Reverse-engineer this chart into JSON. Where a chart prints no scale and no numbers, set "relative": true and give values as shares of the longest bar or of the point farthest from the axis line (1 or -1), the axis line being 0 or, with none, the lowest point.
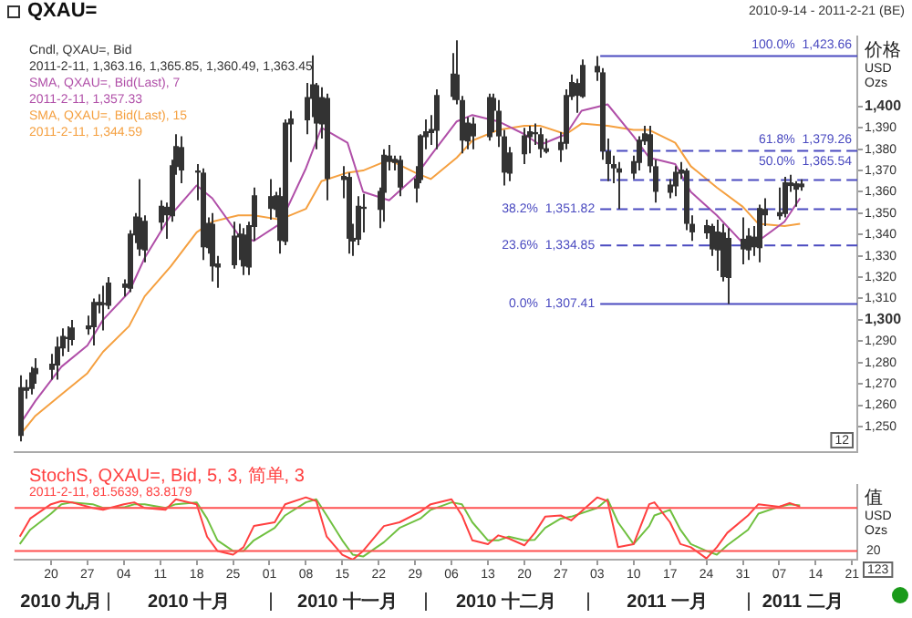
{
  "chart_data": [
    {
      "type": "candlestick",
      "title": "QXAU=",
      "subtitle": "2010-9-14 - 2011-2-21 (BE)",
      "ylabel": "价格 USD Ozs",
      "legend": "top left",
      "tick_labels": "y",
      "xlim": [
        "2010-09-13",
        "2011-02-22"
      ],
      "ylim": [
        1238,
        1433
      ],
      "yticks": [
        {
          "value": 1250,
          "label": "1,250"
        },
        {
          "value": 1260,
          "label": "1,260"
        },
        {
          "value": 1270,
          "label": "1,270"
        },
        {
          "value": 1280,
          "label": "1,280"
        },
        {
          "value": 1290,
          "label": "1,290"
        },
        {
          "value": 1300,
          "label": "1,300"
        },
        {
          "value": 1310,
          "label": "1,310"
        },
        {
          "value": 1320,
          "label": "1,320"
        },
        {
          "value": 1330,
          "label": "1,330"
        },
        {
          "value": 1340,
          "label": "1,340"
        },
        {
          "value": 1350,
          "label": "1,350"
        },
        {
          "value": 1360,
          "label": "1,360"
        },
        {
          "value": 1370,
          "label": "1,370"
        },
        {
          "value": 1380,
          "label": "1,380"
        },
        {
          "value": 1390,
          "label": "1,390"
        },
        {
          "value": 1400,
          "label": "1,400"
        }
      ],
      "series": [
        {
          "name": "Cndl, QXAU=, Bid",
          "color": "#333333",
          "x": [
            "2010-09-14",
            "2010-09-15",
            "2010-09-16",
            "2010-09-17",
            "2010-09-20",
            "2010-09-21",
            "2010-09-22",
            "2010-09-23",
            "2010-09-24",
            "2010-09-27",
            "2010-09-28",
            "2010-09-29",
            "2010-09-30",
            "2010-10-01",
            "2010-10-04",
            "2010-10-05",
            "2010-10-06",
            "2010-10-07",
            "2010-10-08",
            "2010-10-11",
            "2010-10-12",
            "2010-10-13",
            "2010-10-14",
            "2010-10-15",
            "2010-10-18",
            "2010-10-19",
            "2010-10-20",
            "2010-10-21",
            "2010-10-22",
            "2010-10-25",
            "2010-10-26",
            "2010-10-27",
            "2010-10-28",
            "2010-10-29",
            "2010-11-01",
            "2010-11-02",
            "2010-11-03",
            "2010-11-04",
            "2010-11-05",
            "2010-11-08",
            "2010-11-09",
            "2010-11-10",
            "2010-11-11",
            "2010-11-12",
            "2010-11-15",
            "2010-11-16",
            "2010-11-17",
            "2010-11-18",
            "2010-11-19",
            "2010-11-22",
            "2010-11-23",
            "2010-11-24",
            "2010-11-25",
            "2010-11-26",
            "2010-11-29",
            "2010-11-30",
            "2010-12-01",
            "2010-12-02",
            "2010-12-03",
            "2010-12-06",
            "2010-12-07",
            "2010-12-08",
            "2010-12-09",
            "2010-12-10",
            "2010-12-13",
            "2010-12-14",
            "2010-12-15",
            "2010-12-16",
            "2010-12-17",
            "2010-12-20",
            "2010-12-21",
            "2010-12-22",
            "2010-12-23",
            "2010-12-24",
            "2010-12-27",
            "2010-12-28",
            "2010-12-29",
            "2010-12-30",
            "2010-12-31",
            "2011-01-03",
            "2011-01-04",
            "2011-01-05",
            "2011-01-06",
            "2011-01-07",
            "2011-01-10",
            "2011-01-11",
            "2011-01-12",
            "2011-01-13",
            "2011-01-14",
            "2011-01-17",
            "2011-01-18",
            "2011-01-19",
            "2011-01-20",
            "2011-01-21",
            "2011-01-24",
            "2011-01-25",
            "2011-01-26",
            "2011-01-27",
            "2011-01-28",
            "2011-01-31",
            "2011-02-01",
            "2011-02-02",
            "2011-02-03",
            "2011-02-04",
            "2011-02-07",
            "2011-02-08",
            "2011-02-09",
            "2011-02-10",
            "2011-02-11"
          ],
          "ohlc": [
            [
              1246,
              1274,
              1243,
              1268
            ],
            [
              1268,
              1272,
              1263,
              1268
            ],
            [
              1268,
              1278,
              1265,
              1275
            ],
            [
              1275,
              1282,
              1270,
              1277
            ],
            [
              1277,
              1284,
              1272,
              1279
            ],
            [
              1279,
              1292,
              1272,
              1287
            ],
            [
              1287,
              1296,
              1283,
              1292
            ],
            [
              1292,
              1297,
              1285,
              1291
            ],
            [
              1291,
              1300,
              1288,
              1296
            ],
            [
              1296,
              1302,
              1293,
              1297
            ],
            [
              1297,
              1310,
              1288,
              1308
            ],
            [
              1308,
              1312,
              1303,
              1308
            ],
            [
              1308,
              1316,
              1295,
              1307
            ],
            [
              1307,
              1320,
              1305,
              1317
            ],
            [
              1317,
              1319,
              1311,
              1315
            ],
            [
              1315,
              1342,
              1313,
              1340
            ],
            [
              1340,
              1350,
              1336,
              1348
            ],
            [
              1348,
              1366,
              1330,
              1333
            ],
            [
              1333,
              1349,
              1327,
              1346
            ],
            [
              1346,
              1356,
              1342,
              1353
            ],
            [
              1353,
              1355,
              1338,
              1349
            ],
            [
              1349,
              1375,
              1346,
              1372
            ],
            [
              1372,
              1387,
              1368,
              1381
            ],
            [
              1381,
              1386,
              1364,
              1370
            ],
            [
              1370,
              1373,
              1356,
              1369
            ],
            [
              1369,
              1371,
              1328,
              1334
            ],
            [
              1334,
              1348,
              1331,
              1345
            ],
            [
              1345,
              1350,
              1318,
              1325
            ],
            [
              1325,
              1330,
              1315,
              1326
            ],
            [
              1326,
              1346,
              1324,
              1339
            ],
            [
              1339,
              1345,
              1328,
              1340
            ],
            [
              1340,
              1343,
              1321,
              1325
            ],
            [
              1325,
              1346,
              1321,
              1344
            ],
            [
              1344,
              1362,
              1337,
              1358
            ],
            [
              1358,
              1366,
              1347,
              1352
            ],
            [
              1352,
              1360,
              1348,
              1358
            ],
            [
              1358,
              1362,
              1331,
              1337
            ],
            [
              1337,
              1394,
              1335,
              1392
            ],
            [
              1392,
              1398,
              1374,
              1394
            ],
            [
              1394,
              1411,
              1387,
              1404
            ],
            [
              1404,
              1424,
              1395,
              1410
            ],
            [
              1410,
              1411,
              1380,
              1392
            ],
            [
              1392,
              1409,
              1385,
              1404
            ],
            [
              1404,
              1406,
              1356,
              1366
            ],
            [
              1366,
              1372,
              1357,
              1367
            ],
            [
              1367,
              1369,
              1331,
              1338
            ],
            [
              1338,
              1345,
              1330,
              1338
            ],
            [
              1338,
              1358,
              1335,
              1353
            ],
            [
              1353,
              1359,
              1341,
              1352
            ],
            [
              1352,
              1362,
              1343,
              1360
            ],
            [
              1360,
              1380,
              1346,
              1377
            ],
            [
              1377,
              1382,
              1370,
              1374
            ],
            [
              1374,
              1377,
              1370,
              1375
            ],
            [
              1375,
              1377,
              1358,
              1362
            ],
            [
              1362,
              1372,
              1355,
              1366
            ],
            [
              1366,
              1387,
              1364,
              1386
            ],
            [
              1386,
              1394,
              1380,
              1388
            ],
            [
              1388,
              1396,
              1382,
              1389
            ],
            [
              1389,
              1408,
              1380,
              1405
            ],
            [
              1405,
              1425,
              1403,
              1415
            ],
            [
              1415,
              1431,
              1401,
              1403
            ],
            [
              1403,
              1405,
              1378,
              1384
            ],
            [
              1384,
              1395,
              1380,
              1392
            ],
            [
              1392,
              1395,
              1380,
              1386
            ],
            [
              1386,
              1406,
              1384,
              1404
            ],
            [
              1404,
              1406,
              1388,
              1398
            ],
            [
              1398,
              1403,
              1381,
              1386
            ],
            [
              1386,
              1389,
              1363,
              1369
            ],
            [
              1369,
              1381,
              1365,
              1378
            ],
            [
              1378,
              1390,
              1373,
              1386
            ],
            [
              1386,
              1391,
              1378,
              1388
            ],
            [
              1388,
              1392,
              1382,
              1387
            ],
            [
              1387,
              1390,
              1376,
              1380
            ],
            [
              1380,
              1385,
              1378,
              1380
            ],
            [
              1380,
              1388,
              1374,
              1383
            ],
            [
              1383,
              1408,
              1380,
              1405
            ],
            [
              1405,
              1415,
              1403,
              1411
            ],
            [
              1411,
              1413,
              1397,
              1405
            ],
            [
              1405,
              1422,
              1404,
              1419
            ],
            [
              1419,
              1423.66,
              1412,
              1416
            ],
            [
              1416,
              1418,
              1375,
              1379
            ],
            [
              1379,
              1385,
              1365,
              1373
            ],
            [
              1373,
              1377,
              1364,
              1371
            ],
            [
              1371,
              1374,
              1352,
              1369
            ],
            [
              1369,
              1377,
              1366,
              1374
            ],
            [
              1374,
              1386,
              1370,
              1384
            ],
            [
              1384,
              1391,
              1382,
              1387
            ],
            [
              1387,
              1391,
              1369,
              1372
            ],
            [
              1372,
              1375,
              1355,
              1360
            ],
            [
              1360,
              1366,
              1357,
              1363
            ],
            [
              1363,
              1372,
              1358,
              1369
            ],
            [
              1369,
              1374,
              1366,
              1370
            ],
            [
              1370,
              1371,
              1342,
              1345
            ],
            [
              1345,
              1349,
              1337,
              1341
            ],
            [
              1341,
              1347,
              1338,
              1344
            ],
            [
              1344,
              1345,
              1330,
              1333
            ],
            [
              1333,
              1347,
              1323,
              1341
            ],
            [
              1341,
              1345,
              1318,
              1320
            ],
            [
              1320,
              1343,
              1307.41,
              1338
            ],
            [
              1338,
              1348,
              1326,
              1333
            ],
            [
              1333,
              1343,
              1328,
              1339
            ],
            [
              1339,
              1344,
              1330,
              1334
            ],
            [
              1334,
              1354,
              1327,
              1352
            ],
            [
              1352,
              1357,
              1344,
              1349
            ],
            [
              1349,
              1362,
              1347,
              1350
            ],
            [
              1350,
              1367,
              1348,
              1364
            ],
            [
              1364,
              1368,
              1360,
              1364
            ],
            [
              1364,
              1365,
              1353,
              1361
            ],
            [
              1363.16,
              1365.85,
              1360.49,
              1363.45
            ]
          ]
        },
        {
          "name": "SMA, QXAU=, Bid(Last), 7",
          "type": "line",
          "color": "#b04fa8",
          "x": [
            "2010-09-14",
            "2010-09-17",
            "2010-09-22",
            "2010-09-27",
            "2010-09-30",
            "2010-10-05",
            "2010-10-08",
            "2010-10-13",
            "2010-10-18",
            "2010-10-21",
            "2010-10-26",
            "2010-10-29",
            "2010-11-03",
            "2010-11-08",
            "2010-11-11",
            "2010-11-16",
            "2010-11-19",
            "2010-11-24",
            "2010-11-29",
            "2010-12-02",
            "2010-12-07",
            "2010-12-10",
            "2010-12-15",
            "2010-12-20",
            "2010-12-23",
            "2010-12-28",
            "2010-12-31",
            "2011-01-05",
            "2011-01-10",
            "2011-01-13",
            "2011-01-18",
            "2011-01-21",
            "2011-01-26",
            "2011-01-31",
            "2011-02-03",
            "2011-02-08",
            "2011-02-11"
          ],
          "values": [
            1251,
            1262,
            1278,
            1288,
            1300,
            1313,
            1329,
            1349,
            1363,
            1357,
            1340,
            1337,
            1345,
            1371,
            1390,
            1383,
            1360,
            1356,
            1367,
            1377,
            1393,
            1396,
            1393,
            1387,
            1382,
            1387,
            1398,
            1401,
            1386,
            1376,
            1373,
            1360,
            1349,
            1336,
            1337,
            1346,
            1357
          ]
        },
        {
          "name": "SMA, QXAU=, Bid(Last), 15",
          "type": "line",
          "color": "#f5a040",
          "x": [
            "2010-09-14",
            "2010-09-17",
            "2010-09-22",
            "2010-09-27",
            "2010-09-30",
            "2010-10-05",
            "2010-10-08",
            "2010-10-13",
            "2010-10-18",
            "2010-10-21",
            "2010-10-26",
            "2010-10-29",
            "2010-11-03",
            "2010-11-08",
            "2010-11-11",
            "2010-11-16",
            "2010-11-19",
            "2010-11-24",
            "2010-11-29",
            "2010-12-02",
            "2010-12-07",
            "2010-12-10",
            "2010-12-15",
            "2010-12-20",
            "2010-12-23",
            "2010-12-28",
            "2010-12-31",
            "2011-01-05",
            "2011-01-10",
            "2011-01-13",
            "2011-01-18",
            "2011-01-21",
            "2011-01-26",
            "2011-01-31",
            "2011-02-03",
            "2011-02-08",
            "2011-02-11"
          ],
          "values": [
            1246,
            1255,
            1265,
            1275,
            1285,
            1297,
            1311,
            1325,
            1341,
            1346,
            1349,
            1349,
            1347,
            1352,
            1365,
            1369,
            1370,
            1375,
            1369,
            1366,
            1376,
            1384,
            1389,
            1391,
            1391,
            1387,
            1392,
            1391,
            1389,
            1389,
            1383,
            1372,
            1362,
            1353,
            1345,
            1344,
            1345
          ]
        }
      ],
      "ref_lines": [
        {
          "axis": "y",
          "value": 1423.66,
          "label": "100.0%  1,423.66",
          "color": "#4a4ac0",
          "line_style": "solid"
        },
        {
          "axis": "y",
          "value": 1379.26,
          "label": "61.8%  1,379.26",
          "color": "#4a4ac0",
          "line_style": "dashed"
        },
        {
          "axis": "y",
          "value": 1365.54,
          "label": "50.0%  1,365.54",
          "color": "#4a4ac0",
          "line_style": "dashed"
        },
        {
          "axis": "y",
          "value": 1351.82,
          "label": "38.2%  1,351.82",
          "color": "#4a4ac0",
          "line_style": "dashed"
        },
        {
          "axis": "y",
          "value": 1334.85,
          "label": "23.6%  1,334.85",
          "color": "#4a4ac0",
          "line_style": "dashed"
        },
        {
          "axis": "y",
          "value": 1307.41,
          "label": "0.0%  1,307.41",
          "color": "#4a4ac0",
          "line_style": "solid"
        }
      ],
      "annotations": [
        "2011-2-11, 1,363.16, 1,365.85, 1,360.49, 1,363.45",
        "2011-2-11, 1,357.33",
        "2011-2-11, 1,344.59",
        "12"
      ]
    },
    {
      "type": "line",
      "title": "StochS, QXAU=, Bid, 5, 3, 简单, 3",
      "ylabel": "值 USD Ozs",
      "relative": true,
      "tick_labels": "x",
      "xlim": [
        "2010-09-13",
        "2011-02-22"
      ],
      "xticks": [
        {
          "value": "2010-09-20",
          "label": "20"
        },
        {
          "value": "2010-09-27",
          "label": "27"
        },
        {
          "value": "2010-10-04",
          "label": "04"
        },
        {
          "value": "2010-10-11",
          "label": "11"
        },
        {
          "value": "2010-10-18",
          "label": "18"
        },
        {
          "value": "2010-10-25",
          "label": "25"
        },
        {
          "value": "2010-11-01",
          "label": "01"
        },
        {
          "value": "2010-11-08",
          "label": "08"
        },
        {
          "value": "2010-11-15",
          "label": "15"
        },
        {
          "value": "2010-11-22",
          "label": "22"
        },
        {
          "value": "2010-11-29",
          "label": "29"
        },
        {
          "value": "2010-12-06",
          "label": "06"
        },
        {
          "value": "2010-12-13",
          "label": "13"
        },
        {
          "value": "2010-12-20",
          "label": "20"
        },
        {
          "value": "2010-12-27",
          "label": "27"
        },
        {
          "value": "2011-01-03",
          "label": "03"
        },
        {
          "value": "2011-01-10",
          "label": "10"
        },
        {
          "value": "2011-01-17",
          "label": "17"
        },
        {
          "value": "2011-01-24",
          "label": "24"
        },
        {
          "value": "2011-01-31",
          "label": "31"
        },
        {
          "value": "2011-02-07",
          "label": "07"
        },
        {
          "value": "2011-02-14",
          "label": "14"
        },
        {
          "value": "2011-02-21",
          "label": "21"
        }
      ],
      "x": [
        "2010-09-14",
        "2010-09-16",
        "2010-09-20",
        "2010-09-22",
        "2010-09-24",
        "2010-09-28",
        "2010-09-30",
        "2010-10-04",
        "2010-10-06",
        "2010-10-08",
        "2010-10-12",
        "2010-10-14",
        "2010-10-18",
        "2010-10-20",
        "2010-10-22",
        "2010-10-25",
        "2010-10-27",
        "2010-10-29",
        "2010-11-02",
        "2010-11-04",
        "2010-11-08",
        "2010-11-10",
        "2010-11-12",
        "2010-11-15",
        "2010-11-17",
        "2010-11-19",
        "2010-11-23",
        "2010-11-26",
        "2010-11-30",
        "2010-12-02",
        "2010-12-06",
        "2010-12-08",
        "2010-12-10",
        "2010-12-13",
        "2010-12-15",
        "2010-12-17",
        "2010-12-20",
        "2010-12-22",
        "2010-12-24",
        "2010-12-27",
        "2010-12-29",
        "2011-01-03",
        "2011-01-05",
        "2011-01-07",
        "2011-01-10",
        "2011-01-13",
        "2011-01-14",
        "2011-01-17",
        "2011-01-19",
        "2011-01-21",
        "2011-01-24",
        "2011-01-26",
        "2011-01-28",
        "2011-02-01",
        "2011-02-03",
        "2011-02-07",
        "2011-02-09",
        "2011-02-11"
      ],
      "series": [
        {
          "color": "#ff4040",
          "values": [
            0.37,
            0.66,
            0.89,
            0.94,
            0.92,
            0.83,
            0.8,
            0.89,
            0.92,
            0.83,
            0.8,
            0.97,
            0.89,
            0.37,
            0.14,
            0.08,
            0.2,
            0.54,
            0.6,
            0.89,
            1,
            0.94,
            0.37,
            0.08,
            0,
            0.14,
            0.54,
            0.6,
            0.77,
            0.89,
            0.97,
            0.71,
            0.31,
            0.25,
            0.39,
            0.34,
            0.23,
            0.43,
            0.69,
            0.71,
            0.63,
            1,
            0.94,
            0.2,
            0.25,
            0.89,
            0.92,
            0.6,
            0.25,
            0.2,
            0.02,
            0.2,
            0.43,
            0.71,
            0.89,
            0.85,
            0.91,
            0.85
          ]
        },
        {
          "color": "#70c040",
          "values": [
            0.25,
            0.48,
            0.74,
            0.89,
            0.92,
            0.89,
            0.83,
            0.84,
            0.89,
            0.89,
            0.83,
            0.89,
            0.92,
            0.66,
            0.31,
            0.14,
            0.14,
            0.31,
            0.51,
            0.71,
            0.92,
            0.97,
            0.71,
            0.31,
            0.08,
            0.05,
            0.28,
            0.51,
            0.66,
            0.8,
            0.92,
            0.89,
            0.6,
            0.31,
            0.31,
            0.37,
            0.31,
            0.32,
            0.51,
            0.66,
            0.69,
            0.83,
            0.97,
            0.6,
            0.25,
            0.54,
            0.71,
            0.8,
            0.48,
            0.25,
            0.14,
            0.08,
            0.23,
            0.48,
            0.74,
            0.85,
            0.89,
            0.87
          ]
        }
      ],
      "ref_lines": [
        {
          "axis": "y",
          "value": 0.83,
          "color": "#ff5050",
          "line_style": "solid"
        },
        {
          "axis": "y",
          "value": 0.14,
          "color": "#ff5050",
          "line_style": "solid"
        }
      ],
      "annotations": [
        "2011-2-11, 81.5639, 83.8179",
        "2010 九月",
        "2010 十月",
        "2010 十一月",
        "2010 十二月",
        "2011 一月",
        "2011 二月",
        "123",
        "20"
      ]
    }
  ]
}
